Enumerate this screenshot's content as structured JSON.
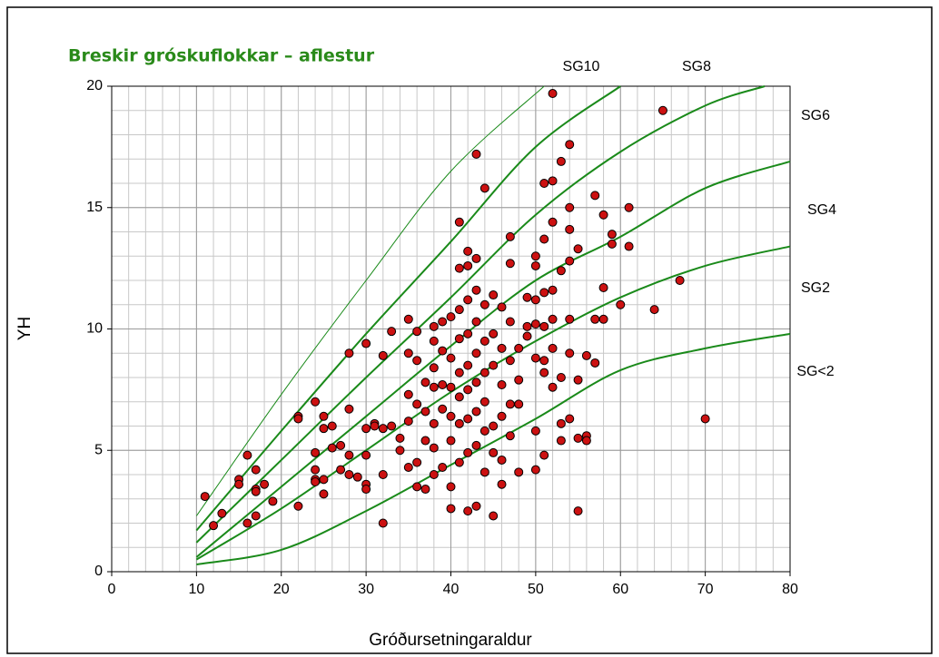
{
  "chart_data": {
    "type": "scatter",
    "title": "Breskir gróskuflokkar – aflestur",
    "x_label": "Gróðursetningaraldur",
    "y_label": "YH",
    "xlim": [
      0,
      80
    ],
    "ylim": [
      0,
      20
    ],
    "xticks": [
      0,
      10,
      20,
      30,
      40,
      50,
      60,
      70,
      80
    ],
    "yticks": [
      0,
      5,
      10,
      15,
      20
    ],
    "grid": true,
    "x_minor_step": 2,
    "y_minor_step": 1,
    "points": {
      "color": "#cc1111",
      "x": [
        11,
        12,
        13,
        15,
        15,
        16,
        16,
        17,
        17,
        17,
        17,
        18,
        19,
        22,
        22,
        22,
        24,
        24,
        24,
        24,
        24,
        25,
        25,
        25,
        25,
        26,
        26,
        27,
        27,
        28,
        28,
        28,
        28,
        29,
        30,
        30,
        30,
        30,
        30,
        31,
        31,
        32,
        32,
        32,
        32,
        33,
        33,
        34,
        34,
        35,
        35,
        35,
        35,
        35,
        36,
        36,
        36,
        36,
        36,
        37,
        37,
        37,
        37,
        38,
        38,
        38,
        38,
        38,
        38,
        38,
        39,
        39,
        39,
        39,
        39,
        40,
        40,
        40,
        40,
        40,
        40,
        40,
        41,
        41,
        41,
        41,
        41,
        41,
        41,
        41,
        42,
        42,
        42,
        42,
        42,
        42,
        42,
        42,
        42,
        43,
        43,
        43,
        43,
        43,
        43,
        43,
        43,
        43,
        44,
        44,
        44,
        44,
        44,
        44,
        44,
        45,
        45,
        45,
        45,
        45,
        45,
        46,
        46,
        46,
        46,
        46,
        46,
        47,
        47,
        47,
        47,
        47,
        47,
        48,
        48,
        48,
        48,
        49,
        49,
        49,
        50,
        50,
        50,
        50,
        50,
        50,
        50,
        51,
        51,
        51,
        51,
        51,
        51,
        51,
        52,
        52,
        52,
        52,
        52,
        52,
        52,
        53,
        53,
        53,
        53,
        53,
        54,
        54,
        54,
        54,
        54,
        54,
        54,
        55,
        55,
        55,
        55,
        56,
        56,
        56,
        57,
        57,
        57,
        58,
        58,
        58,
        59,
        59,
        60,
        61,
        61,
        64,
        65,
        67,
        70
      ],
      "values": [
        3.1,
        1.9,
        2.4,
        3.8,
        3.6,
        4.8,
        2,
        3.4,
        3.3,
        4.2,
        2.3,
        3.6,
        2.9,
        6.4,
        6.3,
        2.7,
        7,
        4.9,
        4.2,
        3.8,
        3.7,
        6.4,
        5.9,
        3.8,
        3.2,
        6,
        5.1,
        5.2,
        4.2,
        9,
        6.7,
        4.8,
        4,
        3.9,
        9.4,
        5.9,
        4.8,
        3.6,
        3.4,
        6.1,
        6,
        8.9,
        5.9,
        4,
        2,
        9.9,
        6,
        5.5,
        5,
        10.4,
        9,
        7.3,
        6.2,
        4.3,
        9.9,
        8.7,
        6.9,
        4.5,
        3.5,
        7.8,
        6.6,
        5.4,
        3.4,
        10.1,
        9.5,
        8.4,
        7.6,
        6.1,
        5.1,
        4,
        10.3,
        9.1,
        7.7,
        6.7,
        4.3,
        10.5,
        8.8,
        7.6,
        6.4,
        5.4,
        3.5,
        2.6,
        14.4,
        12.5,
        10.8,
        9.6,
        8.2,
        7.2,
        6.1,
        4.5,
        13.2,
        12.6,
        11.2,
        9.8,
        8.5,
        7.5,
        6.3,
        4.9,
        2.5,
        17.2,
        12.9,
        11.6,
        10.3,
        9,
        7.8,
        6.6,
        5.2,
        2.7,
        15.8,
        11,
        9.5,
        8.2,
        7,
        5.8,
        4.1,
        11.4,
        9.8,
        8.5,
        6,
        4.9,
        2.3,
        10.9,
        9.2,
        7.7,
        6.4,
        4.6,
        3.6,
        13.8,
        12.7,
        10.3,
        8.7,
        6.9,
        5.6,
        9.2,
        7.9,
        6.9,
        4.1,
        11.3,
        10.1,
        9.7,
        13,
        12.6,
        11.2,
        10.2,
        8.8,
        5.8,
        4.2,
        16,
        13.7,
        11.5,
        10.1,
        8.7,
        8.2,
        4.8,
        19.7,
        16.1,
        14.4,
        11.6,
        10.4,
        9.2,
        7.6,
        16.9,
        12.4,
        8,
        6.1,
        5.4,
        17.6,
        15,
        14.1,
        12.8,
        10.4,
        9,
        6.3,
        13.3,
        7.9,
        5.5,
        2.5,
        8.9,
        5.6,
        5.4,
        15.5,
        10.4,
        8.6,
        14.7,
        11.7,
        10.4,
        13.9,
        13.5,
        11,
        15,
        13.4,
        10.8,
        19,
        12,
        6.3
      ]
    },
    "curves": [
      {
        "name": "SG10",
        "color": "#1a8a1a",
        "x": [
          10,
          20,
          30,
          40,
          51
        ],
        "values": [
          2.3,
          7.3,
          12,
          16.5,
          20
        ]
      },
      {
        "name": "SG8",
        "color": "#1a8a1a",
        "x": [
          10,
          20,
          30,
          40,
          50,
          60
        ],
        "values": [
          1.7,
          5.8,
          9.8,
          13.6,
          17.5,
          20
        ]
      },
      {
        "name": "SG6",
        "color": "#1a8a1a",
        "x": [
          10,
          20,
          30,
          40,
          50,
          60,
          70,
          77
        ],
        "values": [
          1.2,
          4.6,
          8,
          11.3,
          14.7,
          17.3,
          19.2,
          20
        ]
      },
      {
        "name": "SG4",
        "color": "#1a8a1a",
        "x": [
          10,
          20,
          30,
          40,
          50,
          60,
          70,
          80
        ],
        "values": [
          0.6,
          3.5,
          6.4,
          9.3,
          12,
          13.8,
          15.8,
          16.9
        ]
      },
      {
        "name": "SG2",
        "color": "#1a8a1a",
        "x": [
          10,
          20,
          30,
          40,
          50,
          60,
          70,
          80
        ],
        "values": [
          0.5,
          2.6,
          5,
          7.4,
          9.5,
          11.3,
          12.6,
          13.4
        ]
      },
      {
        "name": "SG<2",
        "color": "#1a8a1a",
        "x": [
          10,
          20,
          30,
          40,
          50,
          60,
          70,
          80
        ],
        "values": [
          0.3,
          0.9,
          2.5,
          4.4,
          6.3,
          8.3,
          9.2,
          9.8
        ]
      }
    ]
  }
}
